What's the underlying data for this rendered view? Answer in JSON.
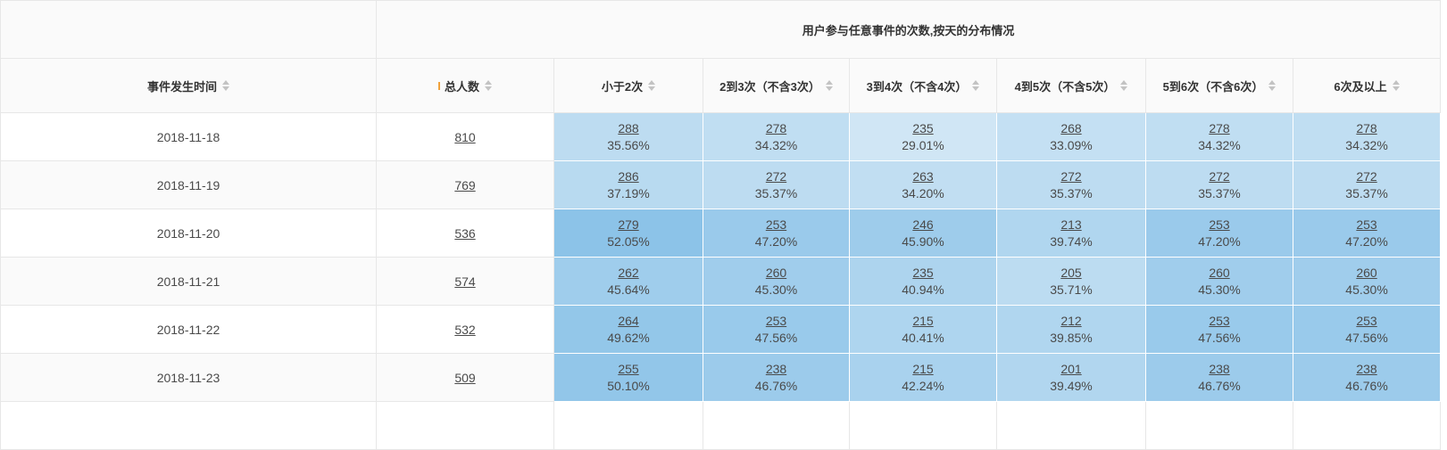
{
  "table": {
    "group_header": "用户参与任意事件的次数,按天的分布情况",
    "corner_label": "",
    "columns": [
      {
        "label": "事件发生时间",
        "sortable": true
      },
      {
        "label": "总人数",
        "sortable": true,
        "indicator": true
      },
      {
        "label": "小于2次",
        "sortable": true
      },
      {
        "label": "2到3次（不含3次）",
        "sortable": true
      },
      {
        "label": "3到4次（不含4次）",
        "sortable": true
      },
      {
        "label": "4到5次（不含5次）",
        "sortable": true
      },
      {
        "label": "5到6次（不含6次）",
        "sortable": true
      },
      {
        "label": "6次及以上",
        "sortable": true
      }
    ],
    "rows": [
      {
        "date": "2018-11-18",
        "total": "810",
        "cells": [
          {
            "count": "288",
            "pct": "35.56%"
          },
          {
            "count": "278",
            "pct": "34.32%"
          },
          {
            "count": "235",
            "pct": "29.01%"
          },
          {
            "count": "268",
            "pct": "33.09%"
          },
          {
            "count": "278",
            "pct": "34.32%"
          },
          {
            "count": "278",
            "pct": "34.32%"
          }
        ]
      },
      {
        "date": "2018-11-19",
        "total": "769",
        "cells": [
          {
            "count": "286",
            "pct": "37.19%"
          },
          {
            "count": "272",
            "pct": "35.37%"
          },
          {
            "count": "263",
            "pct": "34.20%"
          },
          {
            "count": "272",
            "pct": "35.37%"
          },
          {
            "count": "272",
            "pct": "35.37%"
          },
          {
            "count": "272",
            "pct": "35.37%"
          }
        ]
      },
      {
        "date": "2018-11-20",
        "total": "536",
        "cells": [
          {
            "count": "279",
            "pct": "52.05%"
          },
          {
            "count": "253",
            "pct": "47.20%"
          },
          {
            "count": "246",
            "pct": "45.90%"
          },
          {
            "count": "213",
            "pct": "39.74%"
          },
          {
            "count": "253",
            "pct": "47.20%"
          },
          {
            "count": "253",
            "pct": "47.20%"
          }
        ]
      },
      {
        "date": "2018-11-21",
        "total": "574",
        "cells": [
          {
            "count": "262",
            "pct": "45.64%"
          },
          {
            "count": "260",
            "pct": "45.30%"
          },
          {
            "count": "235",
            "pct": "40.94%"
          },
          {
            "count": "205",
            "pct": "35.71%"
          },
          {
            "count": "260",
            "pct": "45.30%"
          },
          {
            "count": "260",
            "pct": "45.30%"
          }
        ]
      },
      {
        "date": "2018-11-22",
        "total": "532",
        "cells": [
          {
            "count": "264",
            "pct": "49.62%"
          },
          {
            "count": "253",
            "pct": "47.56%"
          },
          {
            "count": "215",
            "pct": "40.41%"
          },
          {
            "count": "212",
            "pct": "39.85%"
          },
          {
            "count": "253",
            "pct": "47.56%"
          },
          {
            "count": "253",
            "pct": "47.56%"
          }
        ]
      },
      {
        "date": "2018-11-23",
        "total": "509",
        "cells": [
          {
            "count": "255",
            "pct": "50.10%"
          },
          {
            "count": "238",
            "pct": "46.76%"
          },
          {
            "count": "215",
            "pct": "42.24%"
          },
          {
            "count": "201",
            "pct": "39.49%"
          },
          {
            "count": "238",
            "pct": "46.76%"
          },
          {
            "count": "238",
            "pct": "46.76%"
          }
        ]
      }
    ]
  },
  "heatmap": {
    "low_color": "#d0e6f5",
    "high_color": "#8cc3e8",
    "min_pct": 29.01,
    "max_pct": 52.05
  },
  "colors": {
    "header_bg": "#fafafa",
    "alt_row_bg": "#fafafa",
    "border": "#e7e7e7",
    "text": "#4a4a4a",
    "header_text": "#333333",
    "sort_icon": "#c3c3c3",
    "indicator": "#f0a23c"
  }
}
